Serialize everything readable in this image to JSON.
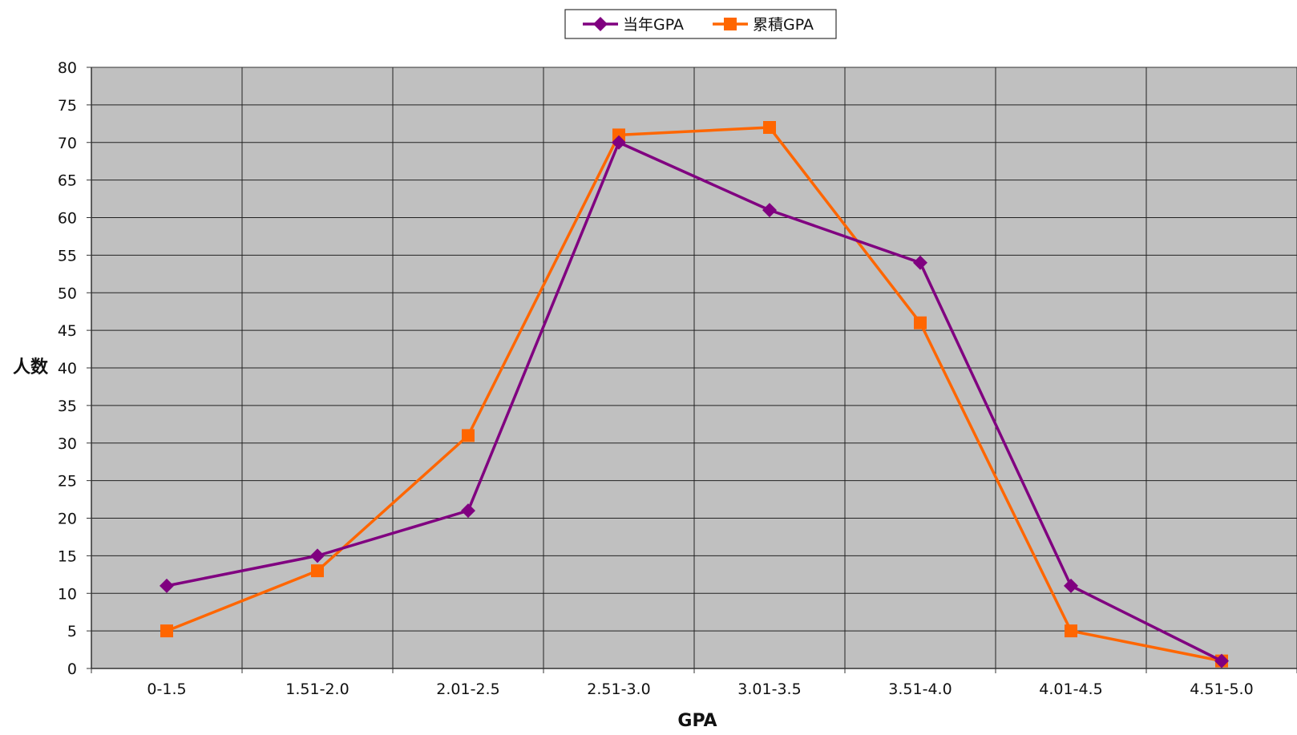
{
  "chart_data": {
    "type": "line",
    "title": "",
    "xlabel": "GPA",
    "ylabel": "人数",
    "ylim": [
      0,
      80
    ],
    "ytick_step": 5,
    "grid": true,
    "legend_position": "top-center",
    "categories": [
      "0-1.5",
      "1.51-2.0",
      "2.01-2.5",
      "2.51-3.0",
      "3.01-3.5",
      "3.51-4.0",
      "4.01-4.5",
      "4.51-5.0"
    ],
    "series": [
      {
        "name": "当年GPA",
        "color": "#800080",
        "marker": "diamond",
        "values": [
          11,
          15,
          21,
          70,
          61,
          54,
          11,
          1
        ]
      },
      {
        "name": "累積GPA",
        "color": "#FF6600",
        "marker": "square",
        "values": [
          5,
          13,
          31,
          71,
          72,
          46,
          5,
          1
        ]
      }
    ],
    "colors": {
      "plot_background": "#C0C0C0",
      "grid_line": "#222222",
      "axis_line": "#333333",
      "text": "#111111"
    }
  }
}
